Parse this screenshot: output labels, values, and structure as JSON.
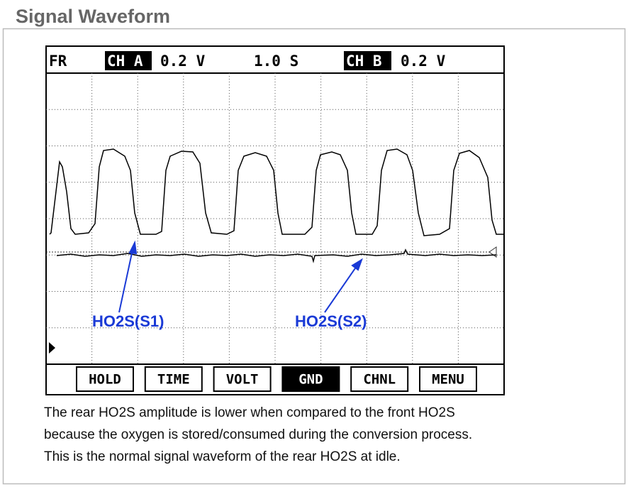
{
  "header": {
    "title": "Signal Waveform"
  },
  "scope": {
    "status": {
      "mode": "FR",
      "ch_a": "CH A",
      "ch_a_scale": "0.2 V",
      "time_scale": "1.0 S",
      "ch_b": "CH B",
      "ch_b_scale": "0.2 V"
    },
    "buttons": [
      "HOLD",
      "TIME",
      "VOLT",
      "GND",
      "CHNL",
      "MENU"
    ],
    "labels": [
      "HO2S(S1)",
      "HO2S(S2)"
    ]
  },
  "caption": [
    "The rear HO2S amplitude is lower when compared to the front HO2S",
    "because the oxygen is stored/consumed during the conversion process.",
    "This is the normal signal waveform of the rear HO2S at idle."
  ]
}
